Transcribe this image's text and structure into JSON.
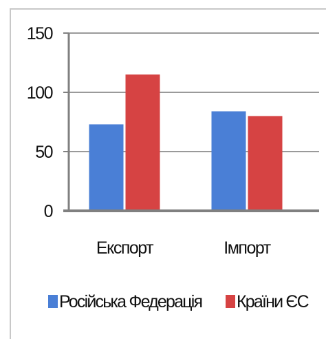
{
  "chart_data": {
    "type": "bar",
    "categories": [
      "Експорт",
      "Імпорт"
    ],
    "series": [
      {
        "name": "Російська Федерація",
        "values": [
          73,
          84
        ],
        "color": "#4a7fd6"
      },
      {
        "name": "Країни ЄС",
        "values": [
          115,
          80
        ],
        "color": "#d64343"
      }
    ],
    "yticks": [
      0,
      50,
      100,
      150
    ],
    "ylim": [
      0,
      150
    ],
    "grid": true,
    "legend_position": "bottom"
  }
}
